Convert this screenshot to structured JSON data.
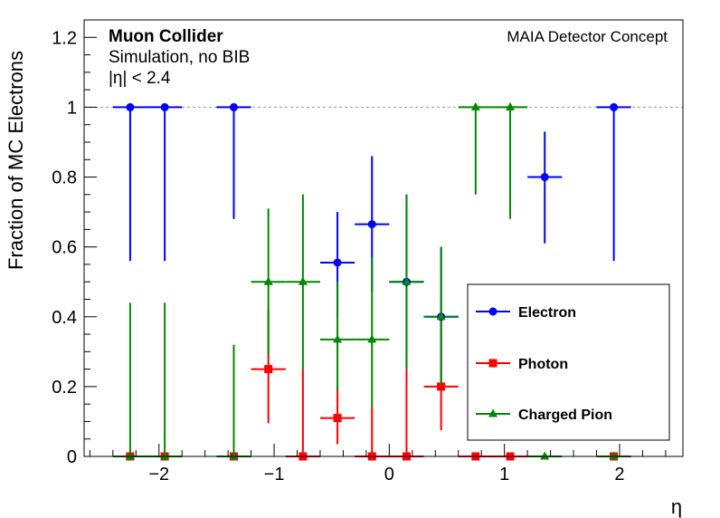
{
  "chart_data": {
    "type": "scatter",
    "ylabel": "Fraction of MC Electrons",
    "xlabel": "η",
    "xlim": [
      -2.65,
      2.55
    ],
    "ylim": [
      0,
      1.25
    ],
    "x_ticks": [
      -2,
      -1,
      0,
      1,
      2
    ],
    "x_tick_labels": [
      "−2",
      "−1",
      "0",
      "1",
      "2"
    ],
    "y_ticks": [
      0,
      0.2,
      0.4,
      0.6,
      0.8,
      1,
      1.2
    ],
    "y_tick_labels": [
      "0",
      "0.2",
      "0.4",
      "0.6",
      "0.8",
      "1",
      "1.2"
    ],
    "reference_line_y": 1,
    "annotations": {
      "experiment": "Muon Collider",
      "detector": "MAIA Detector Concept",
      "line1": "Simulation, no BIB",
      "line2": "|η| < 2.4"
    },
    "legend_placement": "bottom-right",
    "series": [
      {
        "name": "Electron",
        "color": "#0000ff",
        "marker": "circle",
        "points": [
          {
            "x": -2.25,
            "y": 1.0,
            "xerr": 0.15,
            "ylo": 0.56,
            "yhi": 1.0
          },
          {
            "x": -1.95,
            "y": 1.0,
            "xerr": 0.15,
            "ylo": 0.56,
            "yhi": 1.0
          },
          {
            "x": -1.35,
            "y": 1.0,
            "xerr": 0.15,
            "ylo": 0.68,
            "yhi": 1.0
          },
          {
            "x": -0.45,
            "y": 0.555,
            "xerr": 0.15,
            "ylo": 0.4,
            "yhi": 0.7
          },
          {
            "x": -0.15,
            "y": 0.665,
            "xerr": 0.15,
            "ylo": 0.47,
            "yhi": 0.86
          },
          {
            "x": 0.15,
            "y": 0.5,
            "xerr": 0.15,
            "ylo": 0.25,
            "yhi": 0.75
          },
          {
            "x": 0.45,
            "y": 0.4,
            "xerr": 0.15,
            "ylo": 0.2,
            "yhi": 0.6
          },
          {
            "x": 1.35,
            "y": 0.8,
            "xerr": 0.15,
            "ylo": 0.61,
            "yhi": 0.93
          },
          {
            "x": 1.95,
            "y": 1.0,
            "xerr": 0.15,
            "ylo": 0.56,
            "yhi": 1.0
          }
        ]
      },
      {
        "name": "Photon",
        "color": "#ff0000",
        "marker": "square",
        "points": [
          {
            "x": -2.25,
            "y": 0.0,
            "xerr": 0.15,
            "ylo": 0.0,
            "yhi": 0.0
          },
          {
            "x": -1.95,
            "y": 0.0,
            "xerr": 0.15,
            "ylo": 0.0,
            "yhi": 0.0
          },
          {
            "x": -1.35,
            "y": 0.0,
            "xerr": 0.15,
            "ylo": 0.0,
            "yhi": 0.0
          },
          {
            "x": -1.05,
            "y": 0.25,
            "xerr": 0.15,
            "ylo": 0.095,
            "yhi": 0.42
          },
          {
            "x": -0.75,
            "y": 0.0,
            "xerr": 0.15,
            "ylo": 0.0,
            "yhi": 0.25
          },
          {
            "x": -0.45,
            "y": 0.11,
            "xerr": 0.15,
            "ylo": 0.035,
            "yhi": 0.2
          },
          {
            "x": -0.15,
            "y": 0.0,
            "xerr": 0.15,
            "ylo": 0.0,
            "yhi": 0.14
          },
          {
            "x": 0.15,
            "y": 0.0,
            "xerr": 0.15,
            "ylo": 0.0,
            "yhi": 0.25
          },
          {
            "x": 0.45,
            "y": 0.2,
            "xerr": 0.15,
            "ylo": 0.075,
            "yhi": 0.38
          },
          {
            "x": 0.75,
            "y": 0.0,
            "xerr": 0.15,
            "ylo": 0.0,
            "yhi": 0.0
          },
          {
            "x": 1.05,
            "y": 0.0,
            "xerr": 0.15,
            "ylo": 0.0,
            "yhi": 0.0
          },
          {
            "x": 1.95,
            "y": 0.0,
            "xerr": 0.15,
            "ylo": 0.0,
            "yhi": 0.0
          }
        ]
      },
      {
        "name": "Charged Pion",
        "color": "#008800",
        "marker": "triangle",
        "points": [
          {
            "x": -2.25,
            "y": 0.0,
            "xerr": 0.15,
            "ylo": 0.0,
            "yhi": 0.44
          },
          {
            "x": -1.95,
            "y": 0.0,
            "xerr": 0.15,
            "ylo": 0.0,
            "yhi": 0.44
          },
          {
            "x": -1.35,
            "y": 0.0,
            "xerr": 0.15,
            "ylo": 0.0,
            "yhi": 0.32
          },
          {
            "x": -1.05,
            "y": 0.5,
            "xerr": 0.15,
            "ylo": 0.29,
            "yhi": 0.71
          },
          {
            "x": -0.75,
            "y": 0.5,
            "xerr": 0.15,
            "ylo": 0.25,
            "yhi": 0.75
          },
          {
            "x": -0.45,
            "y": 0.335,
            "xerr": 0.15,
            "ylo": 0.19,
            "yhi": 0.5
          },
          {
            "x": -0.15,
            "y": 0.335,
            "xerr": 0.15,
            "ylo": 0.14,
            "yhi": 0.57
          },
          {
            "x": 0.15,
            "y": 0.5,
            "xerr": 0.15,
            "ylo": 0.25,
            "yhi": 0.75
          },
          {
            "x": 0.45,
            "y": 0.4,
            "xerr": 0.15,
            "ylo": 0.2,
            "yhi": 0.6
          },
          {
            "x": 0.75,
            "y": 1.0,
            "xerr": 0.15,
            "ylo": 0.75,
            "yhi": 1.0
          },
          {
            "x": 1.05,
            "y": 1.0,
            "xerr": 0.15,
            "ylo": 0.68,
            "yhi": 1.0
          },
          {
            "x": 1.35,
            "y": 0.0,
            "xerr": 0.15,
            "ylo": 0.0,
            "yhi": 0.0
          },
          {
            "x": 1.95,
            "y": 0.0,
            "xerr": 0.15,
            "ylo": 0.0,
            "yhi": 0.0
          }
        ]
      }
    ]
  }
}
